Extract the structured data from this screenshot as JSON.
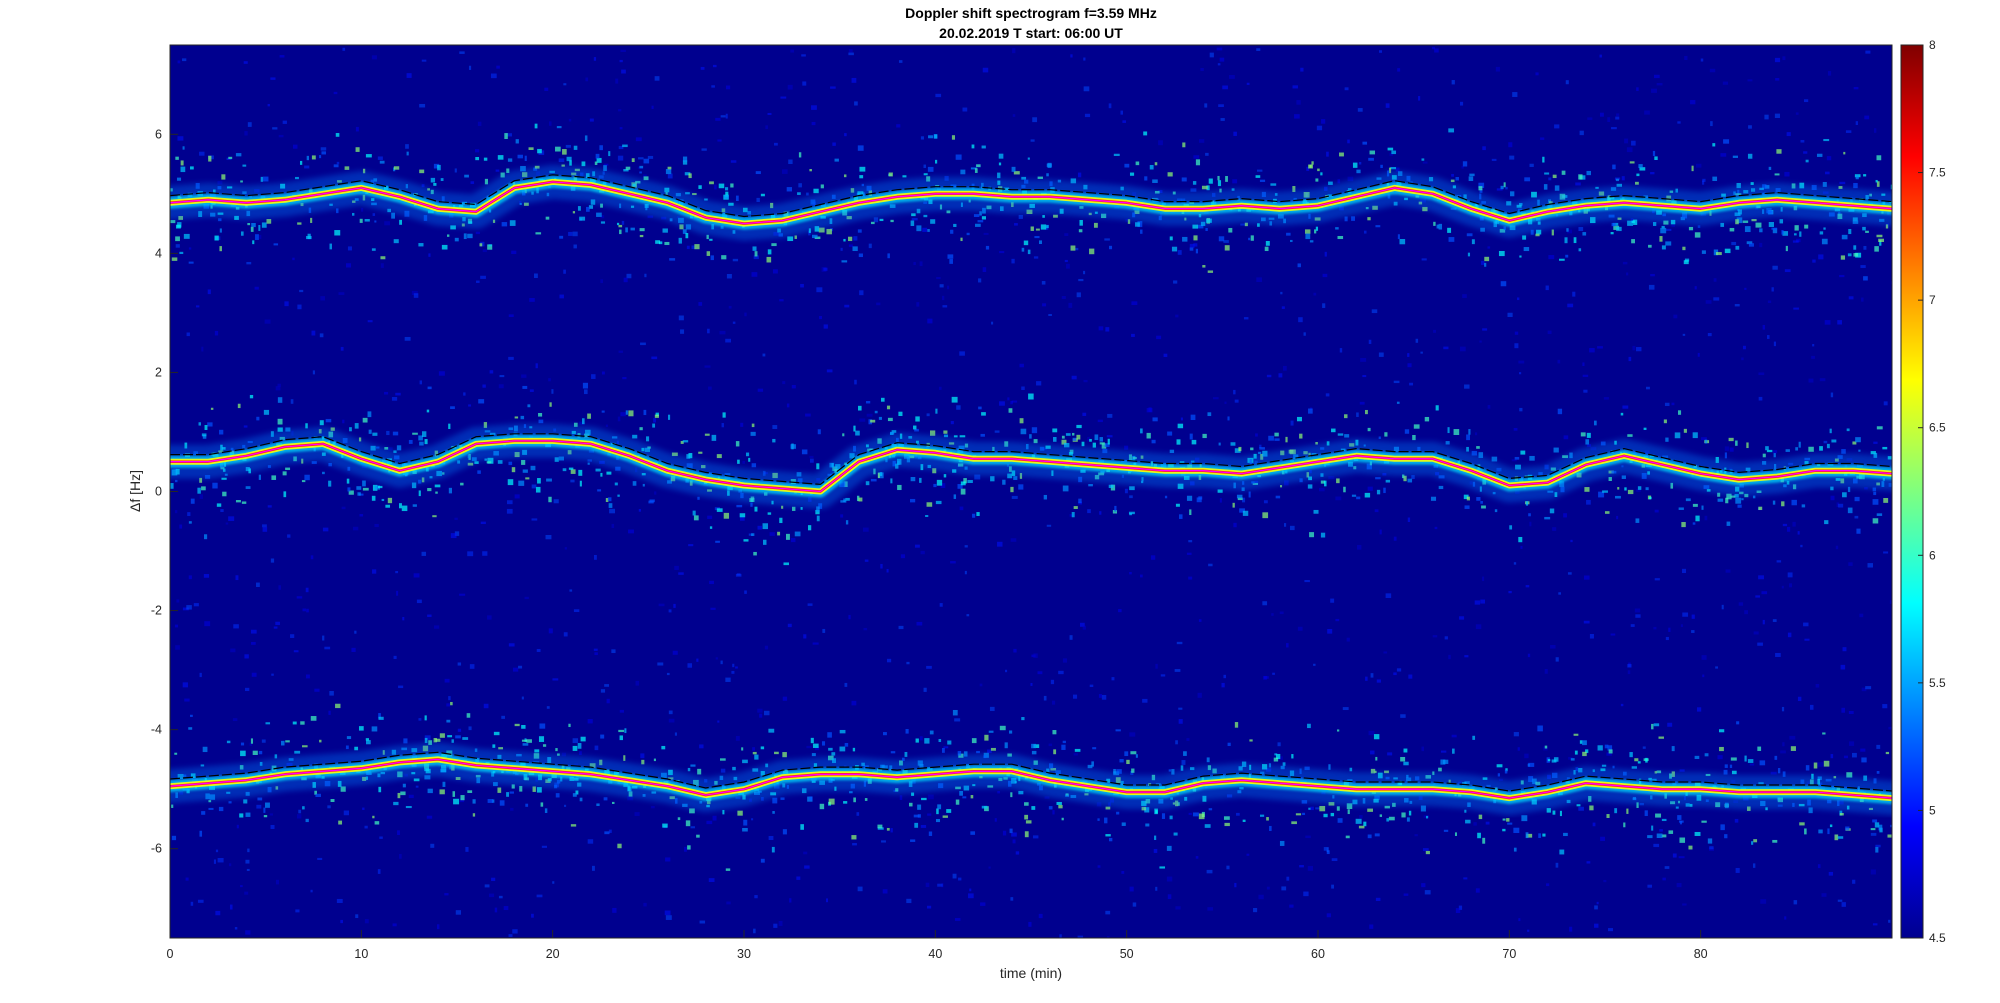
{
  "chart_data": {
    "type": "heatmap",
    "title": "Doppler shift spectrogram f=3.59 MHz",
    "subtitle": "20.02.2019   T start: 06:00 UT",
    "xlabel": "time (min)",
    "ylabel": "Δf [Hz]",
    "xlim": [
      0,
      90
    ],
    "ylim": [
      -7.5,
      7.5
    ],
    "xticks": [
      0,
      10,
      20,
      30,
      40,
      50,
      60,
      70,
      80
    ],
    "yticks": [
      6,
      4,
      2,
      0,
      -2,
      -4,
      -6
    ],
    "colorbar": {
      "range": [
        4.5,
        8
      ],
      "ticks": [
        8,
        7.5,
        7,
        6.5,
        6,
        5.5,
        5,
        4.5
      ],
      "colormap": "jet"
    },
    "colors": {
      "background": "#00008f",
      "trace_black": "#000000",
      "trace_magenta": "#ff00ff"
    },
    "series": [
      {
        "band": "upper",
        "points": [
          [
            0,
            4.85
          ],
          [
            2,
            4.9
          ],
          [
            4,
            4.85
          ],
          [
            6,
            4.9
          ],
          [
            8,
            5.0
          ],
          [
            10,
            5.1
          ],
          [
            12,
            4.95
          ],
          [
            14,
            4.75
          ],
          [
            16,
            4.7
          ],
          [
            18,
            5.1
          ],
          [
            20,
            5.2
          ],
          [
            22,
            5.15
          ],
          [
            24,
            5.0
          ],
          [
            26,
            4.85
          ],
          [
            28,
            4.6
          ],
          [
            30,
            4.5
          ],
          [
            32,
            4.55
          ],
          [
            34,
            4.7
          ],
          [
            36,
            4.85
          ],
          [
            38,
            4.95
          ],
          [
            40,
            5.0
          ],
          [
            42,
            5.0
          ],
          [
            44,
            4.95
          ],
          [
            46,
            4.95
          ],
          [
            48,
            4.9
          ],
          [
            50,
            4.85
          ],
          [
            52,
            4.75
          ],
          [
            54,
            4.75
          ],
          [
            56,
            4.8
          ],
          [
            58,
            4.75
          ],
          [
            60,
            4.8
          ],
          [
            62,
            4.95
          ],
          [
            64,
            5.1
          ],
          [
            66,
            5.0
          ],
          [
            68,
            4.75
          ],
          [
            70,
            4.55
          ],
          [
            72,
            4.7
          ],
          [
            74,
            4.8
          ],
          [
            76,
            4.85
          ],
          [
            78,
            4.8
          ],
          [
            80,
            4.75
          ],
          [
            82,
            4.85
          ],
          [
            84,
            4.9
          ],
          [
            86,
            4.85
          ],
          [
            88,
            4.8
          ],
          [
            90,
            4.75
          ]
        ]
      },
      {
        "band": "middle",
        "points": [
          [
            0,
            0.5
          ],
          [
            2,
            0.5
          ],
          [
            4,
            0.6
          ],
          [
            6,
            0.75
          ],
          [
            8,
            0.8
          ],
          [
            10,
            0.55
          ],
          [
            12,
            0.35
          ],
          [
            14,
            0.5
          ],
          [
            16,
            0.8
          ],
          [
            18,
            0.85
          ],
          [
            20,
            0.85
          ],
          [
            22,
            0.8
          ],
          [
            24,
            0.6
          ],
          [
            26,
            0.35
          ],
          [
            28,
            0.2
          ],
          [
            30,
            0.1
          ],
          [
            32,
            0.05
          ],
          [
            34,
            0.0
          ],
          [
            36,
            0.5
          ],
          [
            38,
            0.7
          ],
          [
            40,
            0.65
          ],
          [
            42,
            0.55
          ],
          [
            44,
            0.55
          ],
          [
            46,
            0.5
          ],
          [
            48,
            0.45
          ],
          [
            50,
            0.4
          ],
          [
            52,
            0.35
          ],
          [
            54,
            0.35
          ],
          [
            56,
            0.3
          ],
          [
            58,
            0.4
          ],
          [
            60,
            0.5
          ],
          [
            62,
            0.6
          ],
          [
            64,
            0.55
          ],
          [
            66,
            0.55
          ],
          [
            68,
            0.35
          ],
          [
            70,
            0.1
          ],
          [
            72,
            0.15
          ],
          [
            74,
            0.45
          ],
          [
            76,
            0.6
          ],
          [
            78,
            0.45
          ],
          [
            80,
            0.3
          ],
          [
            82,
            0.2
          ],
          [
            84,
            0.25
          ],
          [
            86,
            0.35
          ],
          [
            88,
            0.35
          ],
          [
            90,
            0.3
          ]
        ]
      },
      {
        "band": "lower",
        "points": [
          [
            0,
            -4.95
          ],
          [
            2,
            -4.9
          ],
          [
            4,
            -4.85
          ],
          [
            6,
            -4.75
          ],
          [
            8,
            -4.7
          ],
          [
            10,
            -4.65
          ],
          [
            12,
            -4.55
          ],
          [
            14,
            -4.5
          ],
          [
            16,
            -4.6
          ],
          [
            18,
            -4.65
          ],
          [
            20,
            -4.7
          ],
          [
            22,
            -4.75
          ],
          [
            24,
            -4.85
          ],
          [
            26,
            -4.95
          ],
          [
            28,
            -5.1
          ],
          [
            30,
            -5.0
          ],
          [
            32,
            -4.8
          ],
          [
            34,
            -4.75
          ],
          [
            36,
            -4.75
          ],
          [
            38,
            -4.8
          ],
          [
            40,
            -4.75
          ],
          [
            42,
            -4.7
          ],
          [
            44,
            -4.7
          ],
          [
            46,
            -4.85
          ],
          [
            48,
            -4.95
          ],
          [
            50,
            -5.05
          ],
          [
            52,
            -5.05
          ],
          [
            54,
            -4.9
          ],
          [
            56,
            -4.85
          ],
          [
            58,
            -4.9
          ],
          [
            60,
            -4.95
          ],
          [
            62,
            -5.0
          ],
          [
            64,
            -5.0
          ],
          [
            66,
            -5.0
          ],
          [
            68,
            -5.05
          ],
          [
            70,
            -5.15
          ],
          [
            72,
            -5.05
          ],
          [
            74,
            -4.9
          ],
          [
            76,
            -4.95
          ],
          [
            78,
            -5.0
          ],
          [
            80,
            -5.0
          ],
          [
            82,
            -5.05
          ],
          [
            84,
            -5.05
          ],
          [
            86,
            -5.05
          ],
          [
            88,
            -5.1
          ],
          [
            90,
            -5.15
          ]
        ]
      }
    ]
  }
}
